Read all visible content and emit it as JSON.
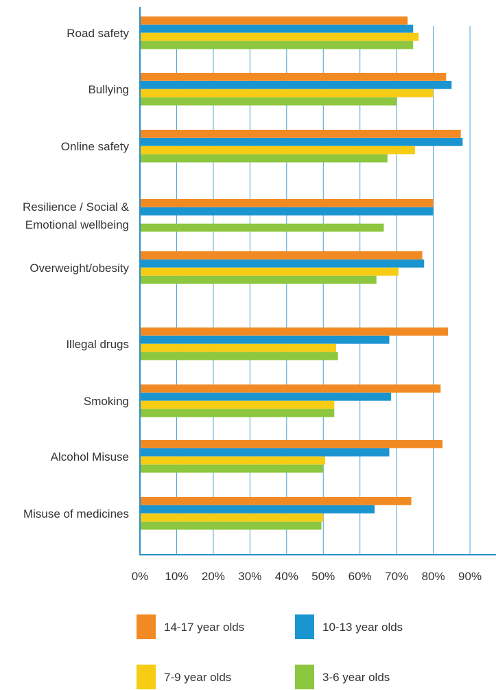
{
  "chart_data": {
    "type": "bar",
    "orientation": "horizontal",
    "title": "",
    "xlabel": "",
    "ylabel": "",
    "xlim": [
      0,
      90
    ],
    "tick_values": [
      0,
      10,
      20,
      30,
      40,
      50,
      60,
      70,
      80,
      90
    ],
    "tick_labels": [
      "0%",
      "10%",
      "20%",
      "30%",
      "40%",
      "50%",
      "60%",
      "70%",
      "80%",
      "90%"
    ],
    "grid": true,
    "legend_position": "bottom",
    "categories": [
      "Road safety",
      "Bullying",
      "Online safety",
      "Resilience / Social & Emotional wellbeing",
      "Overweight/obesity",
      "Illegal drugs",
      "Smoking",
      "Alcohol Misuse",
      "Misuse of medicines"
    ],
    "category_label_lines": [
      [
        "Road safety"
      ],
      [
        "Bullying"
      ],
      [
        "Online safety"
      ],
      [
        "Resilience / Social &",
        "Emotional wellbeing"
      ],
      [
        "Overweight/obesity"
      ],
      [
        "Illegal drugs"
      ],
      [
        "Smoking"
      ],
      [
        "Alcohol Misuse"
      ],
      [
        "Misuse of medicines"
      ]
    ],
    "series": [
      {
        "name": "14-17 year olds",
        "color": "#F28A24",
        "values": [
          73,
          83.5,
          87.5,
          80,
          77,
          84,
          82,
          82.5,
          74
        ]
      },
      {
        "name": "10-13 year olds",
        "color": "#1B95CF",
        "values": [
          74.5,
          85,
          88,
          80,
          77.5,
          68,
          68.5,
          68,
          64
        ]
      },
      {
        "name": "7-9 year olds",
        "color": "#F6CC15",
        "values": [
          76,
          80,
          75,
          null,
          70.5,
          53.5,
          53,
          50.5,
          50
        ]
      },
      {
        "name": "3-6 year olds",
        "color": "#8DC63F",
        "values": [
          74.5,
          70,
          67.5,
          66.5,
          64.5,
          54,
          53,
          50,
          49.5
        ]
      }
    ]
  },
  "colors": {
    "axis": "#2E8FC7",
    "grid": "#4A9FD0"
  }
}
